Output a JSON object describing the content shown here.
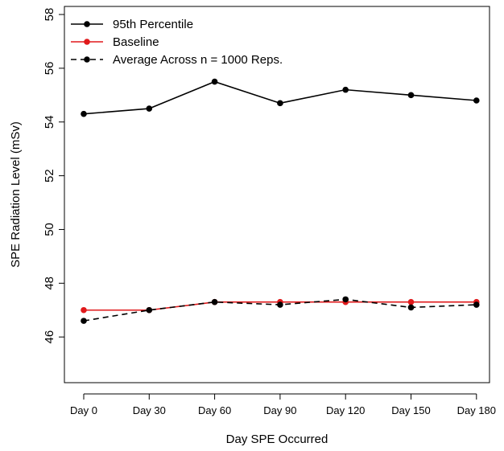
{
  "chart_data": {
    "type": "line",
    "title": "",
    "xlabel": "Day SPE Occurred",
    "ylabel": "SPE Radiation Level (mSv)",
    "categories": [
      "Day 0",
      "Day 30",
      "Day 60",
      "Day 90",
      "Day 120",
      "Day 150",
      "Day 180"
    ],
    "ylim": [
      44.3,
      58.3
    ],
    "yticks": [
      "46",
      "48",
      "50",
      "52",
      "54",
      "56",
      "58"
    ],
    "ytick_values": [
      46,
      48,
      50,
      52,
      54,
      56,
      58
    ],
    "grid": false,
    "legend_position": "top-left",
    "series": [
      {
        "name": "95th Percentile",
        "color": "#000000",
        "line_style": "solid",
        "values": [
          54.3,
          54.5,
          55.5,
          54.7,
          55.2,
          55.0,
          54.8
        ]
      },
      {
        "name": "Baseline",
        "color": "#e0191b",
        "line_style": "solid",
        "values": [
          47.0,
          47.0,
          47.3,
          47.3,
          47.3,
          47.3,
          47.3
        ]
      },
      {
        "name": "Average Across n = 1000 Reps.",
        "color": "#000000",
        "line_style": "dashed",
        "values": [
          46.6,
          47.0,
          47.3,
          47.2,
          47.4,
          47.1,
          47.2
        ]
      }
    ]
  }
}
